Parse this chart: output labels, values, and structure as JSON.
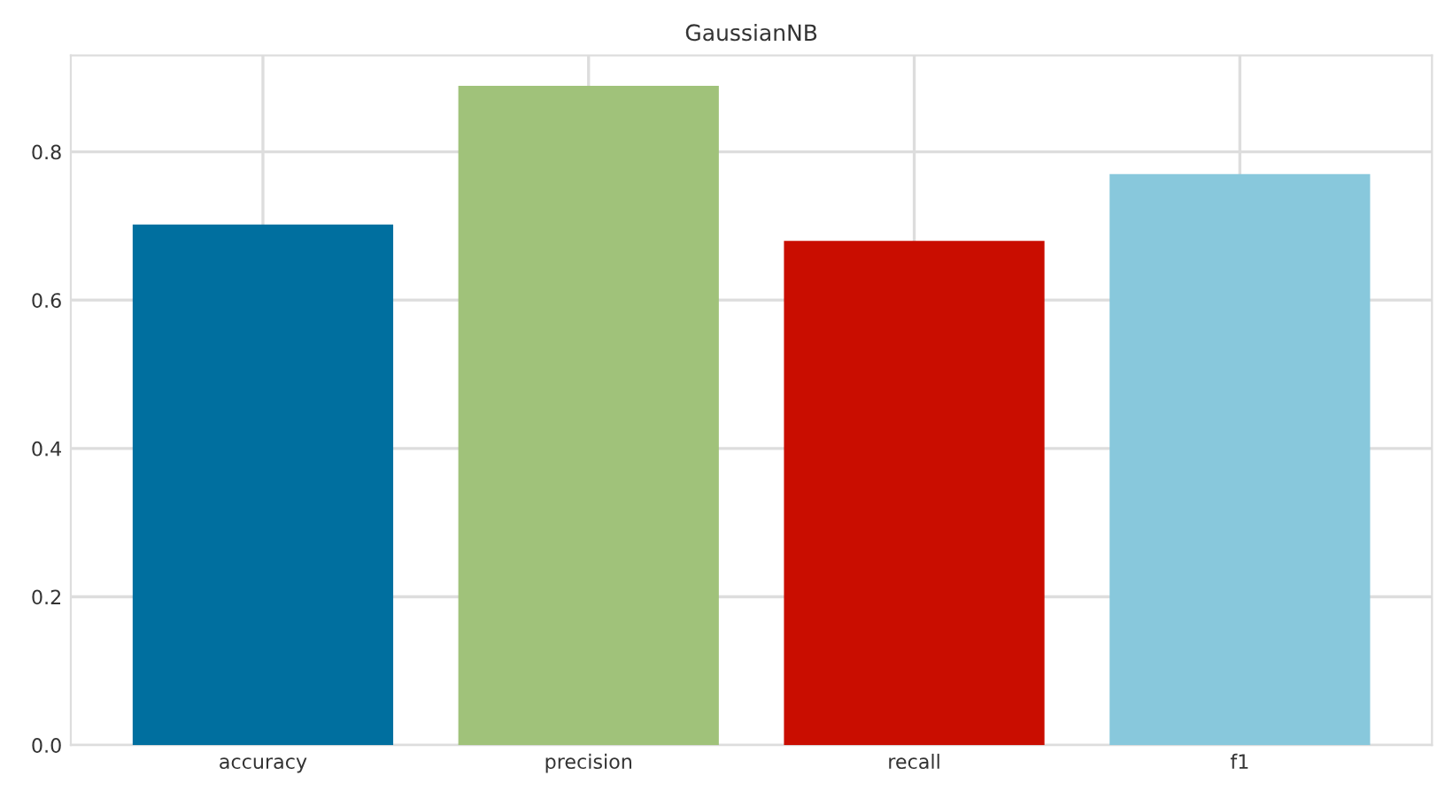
{
  "chart_data": {
    "type": "bar",
    "title": "GaussianNB",
    "categories": [
      "accuracy",
      "precision",
      "recall",
      "f1"
    ],
    "values": [
      0.702,
      0.889,
      0.68,
      0.77
    ],
    "colors": [
      "#006f9f",
      "#a0c27a",
      "#c90d00",
      "#88c8dc"
    ],
    "ylim": [
      0,
      0.93
    ],
    "yticks": [
      {
        "value": 0,
        "label": "0.0"
      },
      {
        "value": 0.2,
        "label": "0.2"
      },
      {
        "value": 0.4,
        "label": "0.4"
      },
      {
        "value": 0.6,
        "label": "0.6"
      },
      {
        "value": 0.8,
        "label": "0.8"
      }
    ],
    "grid": true
  }
}
